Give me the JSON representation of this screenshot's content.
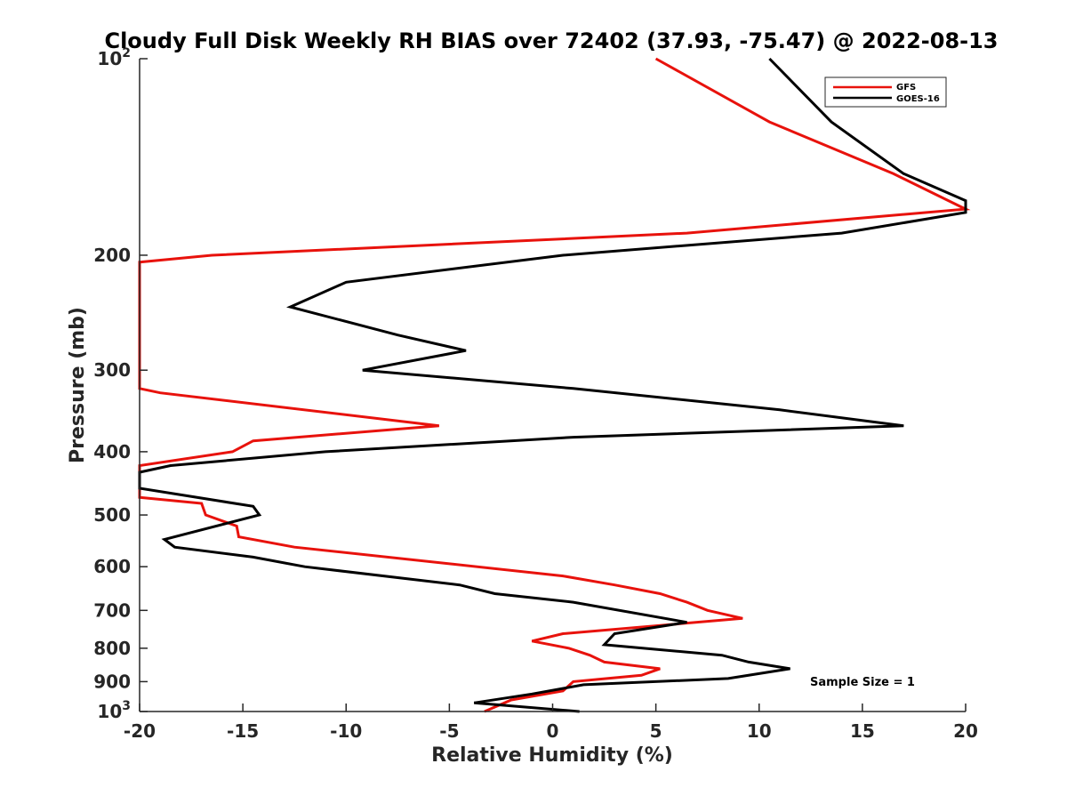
{
  "chart_data": {
    "type": "line",
    "title": "Cloudy Full Disk Weekly RH BIAS over 72402 (37.93, -75.47) @ 2022-08-13",
    "xlabel": "Relative Humidity (%)",
    "ylabel": "Pressure (mb)",
    "xlim": [
      -20,
      20
    ],
    "ylim": [
      100,
      1000
    ],
    "y_scale": "log",
    "y_reversed": true,
    "grid": false,
    "legend_position": "top-right",
    "x_ticks": [
      "-20",
      "-15",
      "-10",
      "-5",
      "0",
      "5",
      "10",
      "15",
      "20"
    ],
    "y_ticks": [
      {
        "value": 100,
        "base": "10",
        "exp": "2"
      },
      {
        "value": 200,
        "label": "200"
      },
      {
        "value": 300,
        "label": "300"
      },
      {
        "value": 400,
        "label": "400"
      },
      {
        "value": 500,
        "label": "500"
      },
      {
        "value": 600,
        "label": "600"
      },
      {
        "value": 700,
        "label": "700"
      },
      {
        "value": 800,
        "label": "800"
      },
      {
        "value": 900,
        "label": "900"
      },
      {
        "value": 1000,
        "base": "10",
        "exp": "3"
      }
    ],
    "annotation": "Sample Size = 1",
    "series": [
      {
        "name": "GFS",
        "color": "#e8120c",
        "points": [
          [
            5.0,
            100
          ],
          [
            10.5,
            125
          ],
          [
            16.5,
            150
          ],
          [
            20.0,
            170
          ],
          [
            6.5,
            185
          ],
          [
            -16.5,
            200
          ],
          [
            -20.0,
            205
          ],
          [
            -20.0,
            320
          ],
          [
            -19.0,
            325
          ],
          [
            -5.5,
            365
          ],
          [
            -14.5,
            385
          ],
          [
            -15.5,
            400
          ],
          [
            -20.0,
            420
          ],
          [
            -20.0,
            470
          ],
          [
            -17.0,
            480
          ],
          [
            -16.8,
            500
          ],
          [
            -15.3,
            520
          ],
          [
            -15.2,
            540
          ],
          [
            -12.5,
            560
          ],
          [
            0.5,
            620
          ],
          [
            3.0,
            640
          ],
          [
            5.2,
            660
          ],
          [
            6.5,
            680
          ],
          [
            7.5,
            700
          ],
          [
            9.2,
            720
          ],
          [
            0.5,
            760
          ],
          [
            -1.0,
            780
          ],
          [
            0.8,
            800
          ],
          [
            1.8,
            820
          ],
          [
            2.5,
            840
          ],
          [
            5.2,
            860
          ],
          [
            4.3,
            880
          ],
          [
            1.0,
            900
          ],
          [
            0.5,
            930
          ],
          [
            -2.0,
            960
          ],
          [
            -3.3,
            1000
          ]
        ]
      },
      {
        "name": "GOES-16",
        "color": "#000000",
        "points": [
          [
            10.5,
            100
          ],
          [
            13.5,
            125
          ],
          [
            17.0,
            150
          ],
          [
            20.0,
            165
          ],
          [
            20.0,
            172
          ],
          [
            14.0,
            185
          ],
          [
            0.5,
            200
          ],
          [
            -10.0,
            220
          ],
          [
            -12.7,
            240
          ],
          [
            -7.5,
            265
          ],
          [
            -4.2,
            280
          ],
          [
            -9.2,
            300
          ],
          [
            1.0,
            320
          ],
          [
            11.0,
            345
          ],
          [
            17.0,
            365
          ],
          [
            1.0,
            380
          ],
          [
            -11.0,
            400
          ],
          [
            -18.5,
            420
          ],
          [
            -20.0,
            430
          ],
          [
            -20.0,
            455
          ],
          [
            -14.5,
            485
          ],
          [
            -14.2,
            500
          ],
          [
            -18.8,
            545
          ],
          [
            -18.3,
            560
          ],
          [
            -14.5,
            580
          ],
          [
            -12.0,
            600
          ],
          [
            -4.5,
            640
          ],
          [
            -2.8,
            660
          ],
          [
            1.0,
            680
          ],
          [
            6.5,
            730
          ],
          [
            3.0,
            760
          ],
          [
            2.5,
            790
          ],
          [
            8.2,
            820
          ],
          [
            9.5,
            840
          ],
          [
            11.5,
            860
          ],
          [
            8.5,
            890
          ],
          [
            1.5,
            910
          ],
          [
            -1.0,
            940
          ],
          [
            -3.8,
            970
          ],
          [
            1.3,
            1000
          ]
        ]
      }
    ]
  }
}
